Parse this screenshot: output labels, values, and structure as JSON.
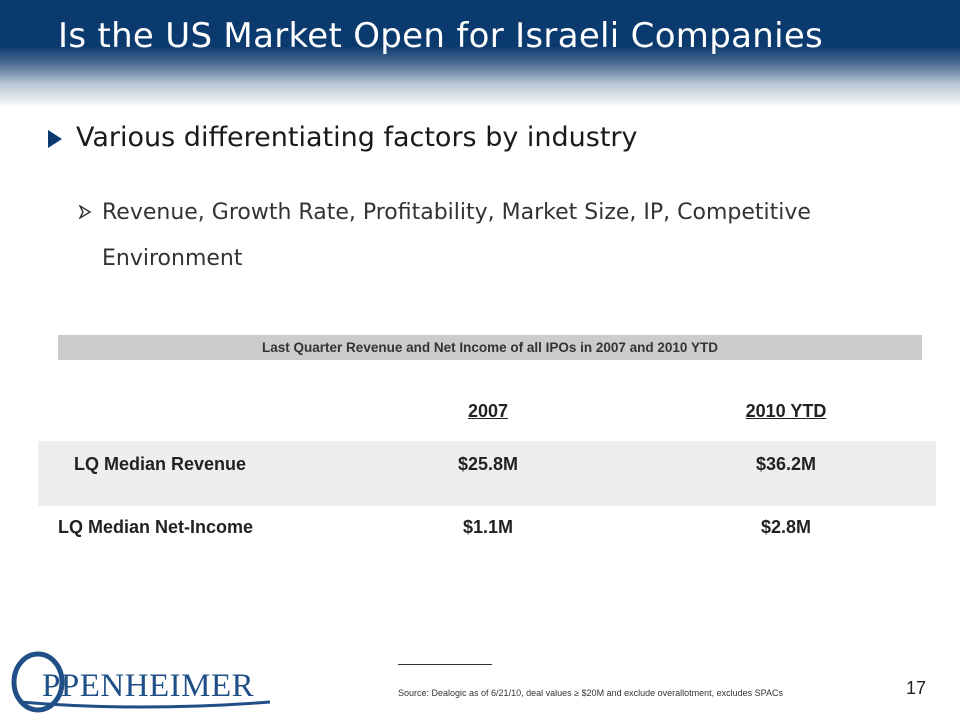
{
  "slide": {
    "title": "Is the US Market Open for Israeli Companies",
    "bullet": "Various differentiating factors by industry",
    "sub_bullet": "Revenue, Growth Rate, Profitability, Market Size, IP, Competitive Environment",
    "bullet_icon": "triangle-right-icon",
    "sub_bullet_icon": "arrowhead-right-icon"
  },
  "table": {
    "banner": "Last Quarter Revenue and Net Income  of all IPOs in 2007 and 2010 YTD",
    "columns": [
      "2007",
      "2010 YTD"
    ],
    "rows": [
      {
        "label": "LQ Median Revenue",
        "values": [
          "$25.8M",
          "$36.2M"
        ]
      },
      {
        "label": "LQ Median Net-Income",
        "values": [
          "$1.1M",
          "$2.8M"
        ]
      }
    ]
  },
  "footer": {
    "source": "Source: Dealogic as of 6/21/10, deal values ≥ $20M and exclude overallotment, excludes SPACs",
    "page_number": "17",
    "logo_text": "OPPENHEIMER"
  },
  "colors": {
    "header_navy": "#0b3a6e",
    "banner_gray": "#cccccc",
    "row_shade": "#eeeeee",
    "logo_blue": "#1f4f86"
  }
}
